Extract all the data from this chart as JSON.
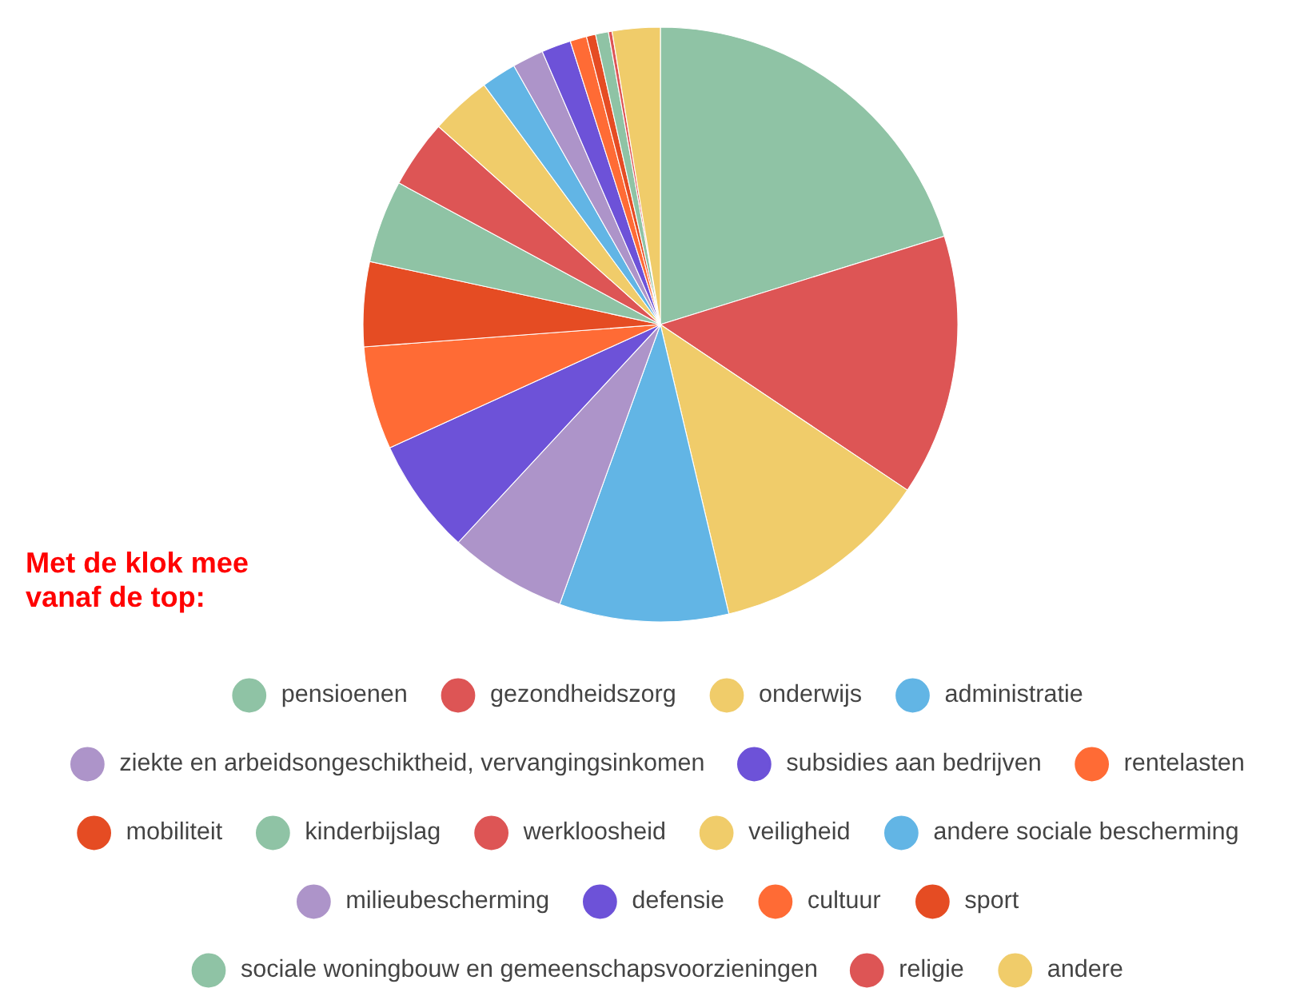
{
  "chart_data": {
    "type": "pie",
    "legend": "bottom",
    "categories": [
      "pensioenen",
      "gezondheidszorg",
      "onderwijs",
      "administratie",
      "ziekte en arbeidsongeschiktheid, vervangingsinkomen",
      "subsidies aan bedrijven",
      "rentelasten",
      "mobiliteit",
      "kinderbijslag",
      "werkloosheid",
      "veiligheid",
      "andere sociale bescherming",
      "milieubescherming",
      "defensie",
      "cultuur",
      "sport",
      "sociale woningbouw en gemeenschapsvoorzieningen",
      "religie",
      "andere"
    ],
    "values": [
      20.2,
      14.2,
      11.9,
      9.2,
      6.4,
      6.3,
      5.6,
      4.6,
      4.5,
      3.7,
      3.3,
      1.9,
      1.7,
      1.6,
      0.9,
      0.5,
      0.7,
      0.2,
      2.6
    ],
    "colors": [
      "#8fc3a5",
      "#dd5555",
      "#f0cc6a",
      "#62b5e5",
      "#ad94c9",
      "#6d52d8",
      "#ff6b35",
      "#e54c23",
      "#8fc3a5",
      "#dd5555",
      "#f0cc6a",
      "#62b5e5",
      "#ad94c9",
      "#6d52d8",
      "#ff6b35",
      "#e54c23",
      "#8fc3a5",
      "#dd5555",
      "#f0cc6a"
    ],
    "annotations": [
      "Met de klok mee\nvanaf de top:"
    ]
  }
}
